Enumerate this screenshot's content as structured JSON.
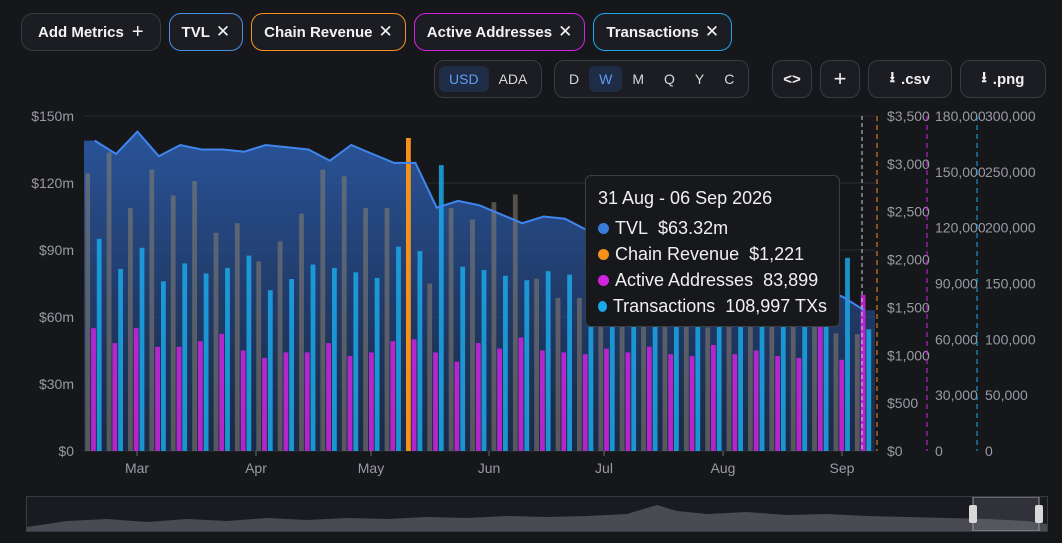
{
  "header": {
    "add_label": "Add Metrics",
    "metrics": [
      {
        "label": "TVL",
        "color": "#4a90e2"
      },
      {
        "label": "Chain Revenue",
        "color": "#f5921e"
      },
      {
        "label": "Active Addresses",
        "color": "#d024e0"
      },
      {
        "label": "Transactions",
        "color": "#1aa8e8"
      }
    ]
  },
  "toolbar": {
    "currency": [
      "USD",
      "ADA"
    ],
    "currency_active": "USD",
    "intervals": [
      "D",
      "W",
      "M",
      "Q",
      "Y",
      "C"
    ],
    "interval_active": "W",
    "csv_label": ".csv",
    "png_label": ".png"
  },
  "tooltip": {
    "date": "31 Aug - 06 Sep 2026",
    "rows": [
      {
        "name": "TVL",
        "value": "$63.32m",
        "color": "#3a7ad8"
      },
      {
        "name": "Chain Revenue",
        "value": "$1,221",
        "color": "#f5921e"
      },
      {
        "name": "Active Addresses",
        "value": "83,899",
        "color": "#d024e0"
      },
      {
        "name": "Transactions",
        "value": "108,997 TXs",
        "color": "#1aa8e8"
      }
    ]
  },
  "chart_data": {
    "type": "bar",
    "x_labels": [
      "Mar",
      "Apr",
      "May",
      "Jun",
      "Jul",
      "Aug",
      "Sep"
    ],
    "y_left": {
      "ticks": [
        "$0",
        "$30m",
        "$60m",
        "$90m",
        "$120m",
        "$150m"
      ],
      "range": [
        0,
        150
      ]
    },
    "y_revenue": {
      "ticks": [
        "$0",
        "$500",
        "$1,000",
        "$1,500",
        "$2,000",
        "$2,500",
        "$3,000",
        "$3,500"
      ],
      "range": [
        0,
        3500
      ]
    },
    "y_addresses": {
      "ticks": [
        "0",
        "30,000",
        "60,000",
        "90,000",
        "120,000",
        "150,000",
        "180,000"
      ],
      "range": [
        0,
        180000
      ]
    },
    "y_transactions": {
      "ticks": [
        "0",
        "50,000",
        "100,000",
        "150,000",
        "200,000",
        "250,000",
        "300,000"
      ],
      "range": [
        0,
        300000
      ]
    },
    "tvl": [
      139,
      133,
      143,
      132,
      137,
      135,
      135,
      134,
      137,
      136,
      135,
      130,
      137,
      133,
      129,
      129,
      109,
      112,
      110,
      106,
      102,
      105,
      104,
      99,
      99,
      102,
      101,
      96,
      94,
      92,
      91,
      88,
      85,
      80,
      73,
      69,
      63
    ],
    "revenue": [
      2900,
      3120,
      2540,
      2940,
      2670,
      2820,
      2280,
      2380,
      1980,
      2190,
      2480,
      2940,
      2870,
      2540,
      2540,
      3270,
      1750,
      2540,
      2420,
      2600,
      2680,
      1800,
      1600,
      1600,
      1730,
      1800,
      1320,
      1340,
      1420,
      1290,
      1330,
      1300,
      1360,
      1320,
      1300,
      1230,
      1221
    ],
    "addresses": [
      66000,
      58000,
      66000,
      56000,
      56000,
      59000,
      63000,
      54000,
      50000,
      53000,
      53000,
      58000,
      51000,
      53000,
      59000,
      60000,
      53000,
      48000,
      58000,
      55000,
      61000,
      54000,
      53000,
      52000,
      55000,
      53000,
      56000,
      52000,
      51000,
      57000,
      52000,
      54000,
      51000,
      50000,
      85000,
      49000,
      83899
    ],
    "transactions": [
      190000,
      163000,
      182000,
      152000,
      168000,
      159000,
      164000,
      175000,
      144000,
      154000,
      167000,
      164000,
      160000,
      155000,
      183000,
      179000,
      256000,
      165000,
      162000,
      157000,
      153000,
      161000,
      158000,
      152000,
      150000,
      148000,
      152000,
      146000,
      145000,
      147000,
      150000,
      152000,
      162000,
      160000,
      155000,
      173000,
      108997
    ]
  }
}
